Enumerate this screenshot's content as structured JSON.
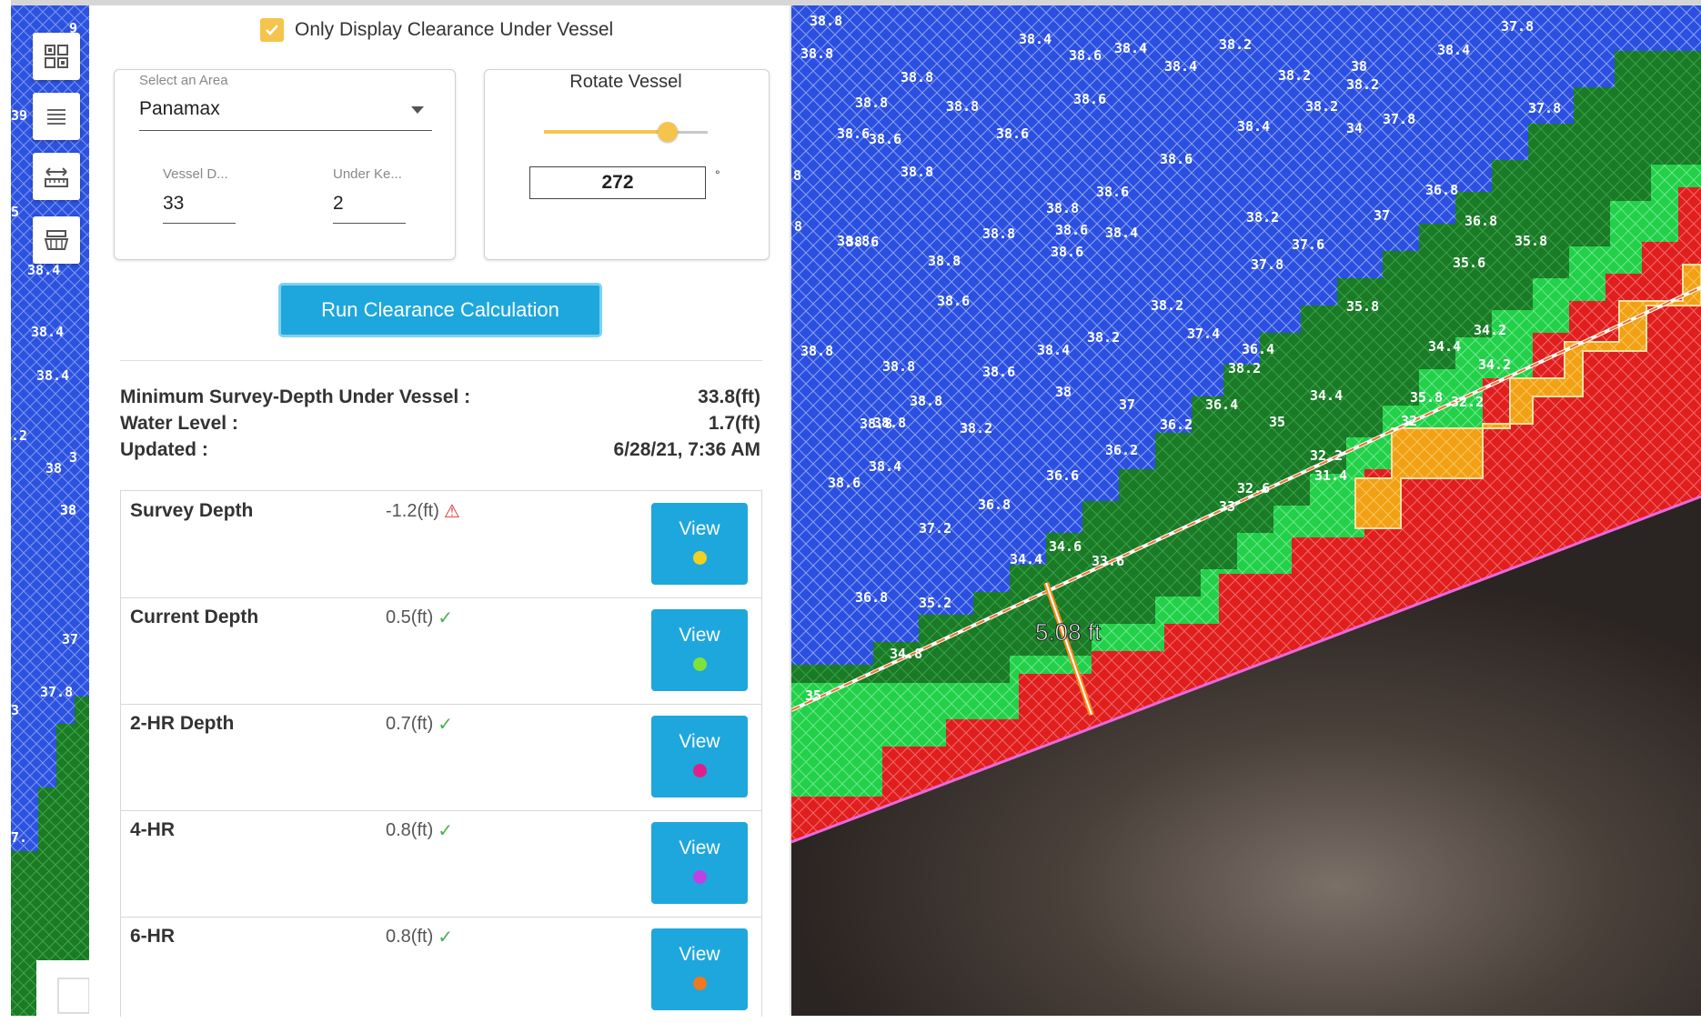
{
  "checkbox": {
    "label": "Only Display Clearance Under Vessel",
    "checked": true,
    "color": "#f5c44d"
  },
  "area_select": {
    "label": "Select an Area",
    "value": "Panamax"
  },
  "vessel_draft": {
    "label": "Vessel D...",
    "value": "33"
  },
  "under_keel": {
    "label": "Under Ke...",
    "value": "2"
  },
  "rotate": {
    "label": "Rotate Vessel",
    "value": "272",
    "unit": "°"
  },
  "run_button": {
    "label": "Run Clearance Calculation"
  },
  "summary": [
    {
      "label": "Minimum Survey-Depth Under Vessel :",
      "value": "33.8(ft)"
    },
    {
      "label": "Water Level :",
      "value": "1.7(ft)"
    },
    {
      "label": "Updated :",
      "value": "6/28/21, 7:36 AM"
    }
  ],
  "rows": [
    {
      "name": "Survey Depth",
      "value": "-1.2(ft)",
      "status": "warning-icon",
      "button": "View",
      "dot": "#f0d020"
    },
    {
      "name": "Current Depth",
      "value": "0.5(ft)",
      "status": "check-icon",
      "button": "View",
      "dot": "#7ee23a"
    },
    {
      "name": "2-HR Depth",
      "value": "0.7(ft)",
      "status": "check-icon",
      "button": "View",
      "dot": "#e0208a"
    },
    {
      "name": "4-HR",
      "value": "0.8(ft)",
      "status": "check-icon",
      "button": "View",
      "dot": "#c040e8"
    },
    {
      "name": "6-HR",
      "value": "0.8(ft)",
      "status": "check-icon",
      "button": "View",
      "dot": "#f07820"
    }
  ],
  "toolbar": [
    "qr-grid-icon",
    "list-icon",
    "measure-icon",
    "vessel-icon"
  ],
  "map": {
    "clearance_label": "5.08 ft",
    "depth_labels": [
      "38.8",
      "38.8",
      "38.4",
      "38.6",
      "38.4",
      "38.2",
      "38.4",
      "34",
      "38.4",
      "37.8",
      "38.8",
      "38.8",
      "38.8",
      "38.6",
      "38.2",
      "38.2",
      "38.2",
      "37.8",
      "37.8",
      "38.6",
      "38.6",
      "38.6",
      "38.6",
      "38.4",
      "38",
      "38.8",
      "38.6",
      "38.8",
      "38.8",
      "36.8",
      "37",
      "36.8",
      "35.8",
      "38.6",
      "38.8",
      "38.6",
      "38.4",
      "37.6",
      "38.2",
      "35.6",
      "38.8",
      "38.6",
      "37.8",
      "38.6",
      "38.2",
      "35.8",
      "34.2",
      "38.2",
      "37.4",
      "36.4",
      "34.4",
      "34.2",
      "38.8",
      "38.8",
      "38.6",
      "38.4",
      "38.2",
      "36.4",
      "38.8",
      "38.8",
      "38",
      "37",
      "35.8",
      "34.4",
      "32.2",
      "38.8",
      "38.2",
      "36.2",
      "35",
      "32",
      "38.4",
      "36.2",
      "32.2",
      "31.4",
      "38.6",
      "36.6",
      "32.6",
      "36.8",
      "33",
      "37.2",
      "34.6",
      "34.4",
      "33.6",
      "36.8",
      "35.2",
      "34.8",
      "35",
      "8",
      "8"
    ],
    "left_labels": [
      "9",
      "39",
      "38",
      "5",
      "38.4",
      "38.4",
      "38.4",
      ".2",
      "38",
      "3",
      "38",
      "38",
      "37",
      "37.8",
      "3",
      "7."
    ]
  }
}
